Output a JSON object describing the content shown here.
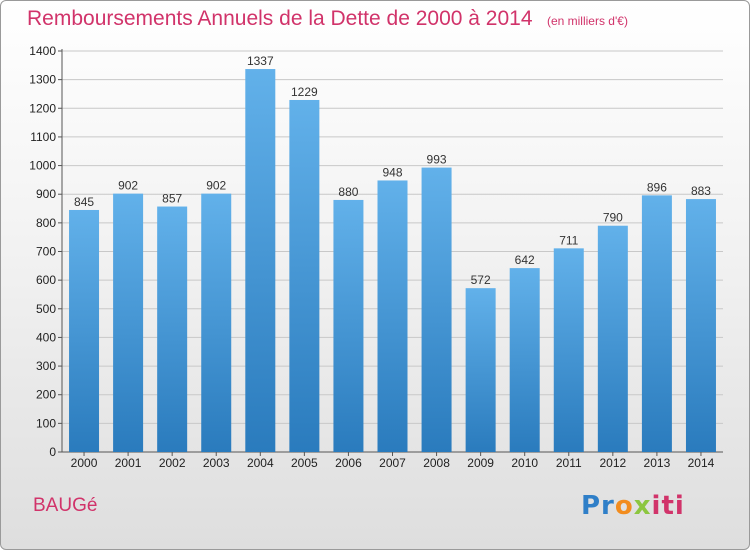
{
  "title": "Remboursements Annuels de la Dette de 2000 à 2014",
  "unit": "(en milliers d'€)",
  "commune": "BAUGé",
  "logo_text": "Proxiti",
  "chart_data": {
    "type": "bar",
    "title": "Remboursements Annuels de la Dette de 2000 à 2014",
    "subtitle": "(en milliers d'€)",
    "xlabel": "",
    "ylabel": "",
    "categories": [
      "2000",
      "2001",
      "2002",
      "2003",
      "2004",
      "2005",
      "2006",
      "2007",
      "2008",
      "2009",
      "2010",
      "2011",
      "2012",
      "2013",
      "2014"
    ],
    "values": [
      845,
      902,
      857,
      902,
      1337,
      1229,
      880,
      948,
      993,
      572,
      642,
      711,
      790,
      896,
      883
    ],
    "ylim": [
      0,
      1400
    ],
    "yticks": [
      0,
      100,
      200,
      300,
      400,
      500,
      600,
      700,
      800,
      900,
      1000,
      1100,
      1200,
      1300,
      1400
    ],
    "grid": true,
    "bar_color_top": "#62b1ea",
    "bar_color_bottom": "#2a7bbd",
    "title_color": "#d1336a"
  }
}
